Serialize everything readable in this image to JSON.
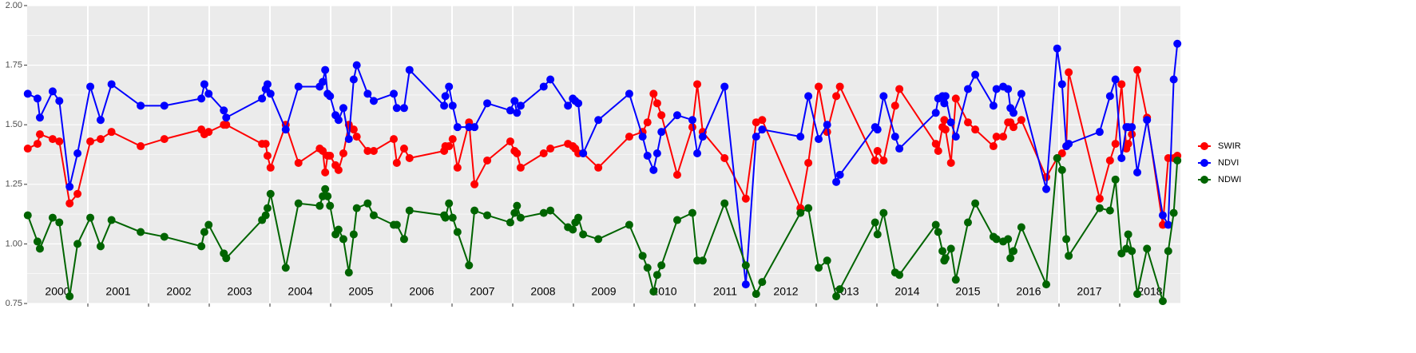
{
  "chart_data": {
    "type": "line",
    "x": [
      2000.01,
      2000.17,
      2000.21,
      2000.42,
      2000.53,
      2000.7,
      2000.83,
      2001.04,
      2001.21,
      2001.39,
      2001.87,
      2002.26,
      2002.87,
      2002.92,
      2002.99,
      2003.24,
      2003.28,
      2003.87,
      2003.93,
      2003.96,
      2004.01,
      2004.26,
      2004.47,
      2004.82,
      2004.87,
      2004.91,
      2004.95,
      2004.99,
      2005.08,
      2005.13,
      2005.21,
      2005.3,
      2005.38,
      2005.43,
      2005.61,
      2005.71,
      2006.04,
      2006.09,
      2006.21,
      2006.3,
      2006.87,
      2006.89,
      2006.95,
      2007.01,
      2007.09,
      2007.28,
      2007.37,
      2007.58,
      2007.96,
      2008.03,
      2008.07,
      2008.13,
      2008.51,
      2008.62,
      2008.91,
      2008.99,
      2009.03,
      2009.08,
      2009.16,
      2009.41,
      2009.92,
      2010.14,
      2010.22,
      2010.32,
      2010.38,
      2010.45,
      2010.71,
      2010.96,
      2011.04,
      2011.13,
      2011.49,
      2011.84,
      2012.01,
      2012.11,
      2012.74,
      2012.87,
      2013.04,
      2013.18,
      2013.33,
      2013.39,
      2013.97,
      2014.01,
      2014.11,
      2014.3,
      2014.37,
      2014.97,
      2015.01,
      2015.08,
      2015.11,
      2015.13,
      2015.22,
      2015.3,
      2015.5,
      2015.62,
      2015.92,
      2015.97,
      2016.08,
      2016.16,
      2016.2,
      2016.25,
      2016.38,
      2016.79,
      2016.97,
      2017.05,
      2017.12,
      2017.16,
      2017.67,
      2017.84,
      2017.93,
      2018.03,
      2018.11,
      2018.14,
      2018.2,
      2018.29,
      2018.45,
      2018.71,
      2018.8,
      2018.89,
      2018.95
    ],
    "series": [
      {
        "name": "SWIR",
        "color": "#ff0000",
        "values": [
          1.4,
          1.42,
          1.46,
          1.44,
          1.43,
          1.17,
          1.21,
          1.43,
          1.44,
          1.47,
          1.41,
          1.44,
          1.48,
          1.46,
          1.47,
          1.5,
          1.5,
          1.42,
          1.42,
          1.37,
          1.32,
          1.5,
          1.34,
          1.4,
          1.39,
          1.3,
          1.37,
          1.37,
          1.33,
          1.31,
          1.38,
          1.5,
          1.48,
          1.45,
          1.39,
          1.39,
          1.44,
          1.34,
          1.4,
          1.36,
          1.39,
          1.41,
          1.41,
          1.44,
          1.32,
          1.51,
          1.25,
          1.35,
          1.43,
          1.39,
          1.38,
          1.32,
          1.38,
          1.4,
          1.42,
          1.41,
          1.4,
          1.38,
          1.38,
          1.32,
          1.45,
          1.47,
          1.51,
          1.63,
          1.59,
          1.54,
          1.29,
          1.49,
          1.67,
          1.47,
          1.36,
          1.19,
          1.51,
          1.52,
          1.15,
          1.34,
          1.66,
          1.47,
          1.62,
          1.66,
          1.35,
          1.39,
          1.35,
          1.58,
          1.65,
          1.42,
          1.39,
          1.49,
          1.52,
          1.48,
          1.34,
          1.61,
          1.51,
          1.48,
          1.41,
          1.45,
          1.45,
          1.51,
          1.51,
          1.49,
          1.52,
          1.28,
          1.36,
          1.38,
          1.41,
          1.72,
          1.19,
          1.35,
          1.42,
          1.67,
          1.4,
          1.42,
          1.46,
          1.73,
          1.53,
          1.08,
          1.36,
          1.36,
          1.37
        ]
      },
      {
        "name": "NDVI",
        "color": "#0000ff",
        "values": [
          1.63,
          1.61,
          1.53,
          1.64,
          1.6,
          1.24,
          1.38,
          1.66,
          1.52,
          1.67,
          1.58,
          1.58,
          1.61,
          1.67,
          1.63,
          1.56,
          1.53,
          1.61,
          1.65,
          1.67,
          1.63,
          1.48,
          1.66,
          1.66,
          1.68,
          1.73,
          1.63,
          1.62,
          1.54,
          1.52,
          1.57,
          1.44,
          1.69,
          1.75,
          1.63,
          1.6,
          1.63,
          1.57,
          1.57,
          1.73,
          1.58,
          1.62,
          1.66,
          1.58,
          1.49,
          1.49,
          1.49,
          1.59,
          1.56,
          1.6,
          1.55,
          1.58,
          1.66,
          1.69,
          1.58,
          1.61,
          1.6,
          1.59,
          1.38,
          1.52,
          1.63,
          1.45,
          1.37,
          1.31,
          1.38,
          1.47,
          1.54,
          1.52,
          1.38,
          1.45,
          1.66,
          0.83,
          1.45,
          1.48,
          1.45,
          1.62,
          1.44,
          1.5,
          1.26,
          1.29,
          1.49,
          1.48,
          1.62,
          1.45,
          1.4,
          1.55,
          1.61,
          1.62,
          1.59,
          1.62,
          1.51,
          1.45,
          1.65,
          1.71,
          1.58,
          1.65,
          1.66,
          1.65,
          1.57,
          1.55,
          1.63,
          1.23,
          1.82,
          1.67,
          1.41,
          1.42,
          1.47,
          1.62,
          1.69,
          1.36,
          1.49,
          1.49,
          1.49,
          1.3,
          1.52,
          1.12,
          1.08,
          1.69,
          1.84
        ]
      },
      {
        "name": "NDWI",
        "color": "#006400",
        "values": [
          1.12,
          1.01,
          0.98,
          1.11,
          1.09,
          0.78,
          1.0,
          1.11,
          0.99,
          1.1,
          1.05,
          1.03,
          0.99,
          1.05,
          1.08,
          0.96,
          0.94,
          1.1,
          1.12,
          1.15,
          1.21,
          0.9,
          1.17,
          1.16,
          1.2,
          1.23,
          1.2,
          1.16,
          1.04,
          1.06,
          1.02,
          0.88,
          1.04,
          1.15,
          1.17,
          1.12,
          1.08,
          1.08,
          1.02,
          1.14,
          1.12,
          1.11,
          1.17,
          1.11,
          1.05,
          0.91,
          1.14,
          1.12,
          1.09,
          1.13,
          1.16,
          1.11,
          1.13,
          1.14,
          1.07,
          1.06,
          1.09,
          1.11,
          1.04,
          1.02,
          1.08,
          0.95,
          0.9,
          0.8,
          0.87,
          0.91,
          1.1,
          1.13,
          0.93,
          0.93,
          1.17,
          0.91,
          0.79,
          0.84,
          1.13,
          1.15,
          0.9,
          0.93,
          0.78,
          0.81,
          1.09,
          1.04,
          1.13,
          0.88,
          0.87,
          1.08,
          1.05,
          0.97,
          0.93,
          0.94,
          0.98,
          0.85,
          1.09,
          1.17,
          1.03,
          1.02,
          1.01,
          1.02,
          0.94,
          0.97,
          1.07,
          0.83,
          1.36,
          1.31,
          1.02,
          0.95,
          1.15,
          1.14,
          1.27,
          0.96,
          0.98,
          1.04,
          0.97,
          0.79,
          0.98,
          0.76,
          0.97,
          1.13,
          1.35
        ]
      }
    ],
    "xlim": [
      2000,
      2019
    ],
    "xticks": [
      {
        "value": 2000.5,
        "label": "2000"
      },
      {
        "value": 2001.5,
        "label": "2001"
      },
      {
        "value": 2002.5,
        "label": "2002"
      },
      {
        "value": 2003.5,
        "label": "2003"
      },
      {
        "value": 2004.5,
        "label": "2004"
      },
      {
        "value": 2005.5,
        "label": "2005"
      },
      {
        "value": 2006.5,
        "label": "2006"
      },
      {
        "value": 2007.5,
        "label": "2007"
      },
      {
        "value": 2008.5,
        "label": "2008"
      },
      {
        "value": 2009.5,
        "label": "2009"
      },
      {
        "value": 2010.5,
        "label": "2010"
      },
      {
        "value": 2011.5,
        "label": "2011"
      },
      {
        "value": 2012.5,
        "label": "2012"
      },
      {
        "value": 2013.5,
        "label": "2013"
      },
      {
        "value": 2014.5,
        "label": "2014"
      },
      {
        "value": 2015.5,
        "label": "2015"
      },
      {
        "value": 2016.5,
        "label": "2016"
      },
      {
        "value": 2017.5,
        "label": "2017"
      },
      {
        "value": 2018.5,
        "label": "2018"
      }
    ],
    "xgrid": [
      2001,
      2002,
      2003,
      2004,
      2005,
      2006,
      2007,
      2008,
      2009,
      2010,
      2011,
      2012,
      2013,
      2014,
      2015,
      2016,
      2017,
      2018
    ],
    "ylim": [
      0.75,
      2
    ],
    "yticks": [
      0.75,
      {
        "value": 1,
        "label": "1.00"
      },
      1.25,
      {
        "value": 1.5,
        "label": "1.50"
      },
      1.75,
      {
        "value": 2,
        "label": "2.00"
      }
    ],
    "grid": true,
    "legend": "right"
  }
}
